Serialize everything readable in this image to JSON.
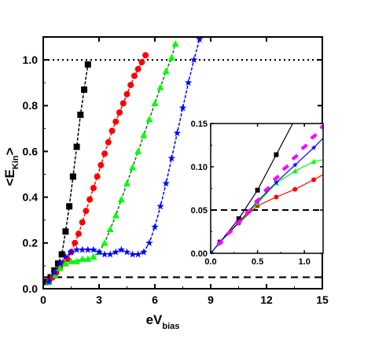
{
  "chart_data": [
    {
      "type": "scatter",
      "title": "",
      "ylabel": "<E",
      "ylabel_subscript": "Kin",
      "ylabel_end": ">",
      "xlabel": "eV",
      "xlabel_subscript": "bias",
      "xlim": [
        0,
        15
      ],
      "ylim": [
        0,
        1.1
      ],
      "xticks": [
        0,
        3,
        6,
        9,
        12,
        15
      ],
      "xtick_labels": [
        "0",
        "3",
        "6",
        "9",
        "12",
        "15"
      ],
      "yticks": [
        0.0,
        0.2,
        0.4,
        0.6,
        0.8,
        1.0
      ],
      "ytick_labels": [
        "0.0",
        "0.2",
        "0.4",
        "0.6",
        "0.8",
        "1.0"
      ],
      "grid": false,
      "legend": "none",
      "reference_lines": [
        {
          "y": 1.0,
          "style": "dotted",
          "color": "#000000"
        },
        {
          "y": 0.05,
          "style": "dashed",
          "color": "#000000"
        }
      ],
      "series": [
        {
          "marker": "square",
          "color": "#000000",
          "x": [
            0.2,
            0.4,
            0.6,
            0.8,
            1.0,
            1.2,
            1.4,
            1.6,
            1.8,
            2.0,
            2.2,
            2.4
          ],
          "y": [
            0.03,
            0.05,
            0.08,
            0.11,
            0.15,
            0.25,
            0.36,
            0.49,
            0.62,
            0.76,
            0.87,
            0.98
          ]
        },
        {
          "marker": "circle",
          "color": "#ff0000",
          "x": [
            0.3,
            0.5,
            0.7,
            0.9,
            1.1,
            1.3,
            1.5,
            1.7,
            1.9,
            2.1,
            2.3,
            2.5,
            2.7,
            2.9,
            3.1,
            3.3,
            3.5,
            3.7,
            3.9,
            4.1,
            4.3,
            4.5,
            4.7,
            4.9,
            5.1,
            5.3,
            5.5
          ],
          "y": [
            0.03,
            0.05,
            0.07,
            0.09,
            0.11,
            0.13,
            0.16,
            0.2,
            0.24,
            0.29,
            0.34,
            0.39,
            0.44,
            0.49,
            0.54,
            0.59,
            0.64,
            0.69,
            0.73,
            0.77,
            0.81,
            0.85,
            0.89,
            0.93,
            0.96,
            0.99,
            1.02
          ]
        },
        {
          "marker": "triangle",
          "color": "#00ff00",
          "x": [
            0.3,
            0.6,
            0.9,
            1.2,
            1.5,
            1.8,
            2.1,
            2.4,
            2.7,
            3.0,
            3.3,
            3.6,
            3.9,
            4.2,
            4.5,
            4.8,
            5.1,
            5.4,
            5.7,
            6.0,
            6.3,
            6.6,
            6.9,
            7.1
          ],
          "y": [
            0.03,
            0.06,
            0.09,
            0.11,
            0.12,
            0.12,
            0.13,
            0.13,
            0.14,
            0.16,
            0.2,
            0.26,
            0.32,
            0.39,
            0.46,
            0.53,
            0.6,
            0.67,
            0.74,
            0.81,
            0.88,
            0.95,
            1.01,
            1.07
          ]
        },
        {
          "marker": "star",
          "color": "#0000ff",
          "x": [
            0.3,
            0.6,
            0.9,
            1.2,
            1.5,
            1.8,
            2.1,
            2.4,
            2.7,
            3.0,
            3.3,
            3.6,
            3.9,
            4.2,
            4.5,
            4.8,
            5.1,
            5.4,
            5.7,
            6.0,
            6.3,
            6.6,
            6.9,
            7.2,
            7.5,
            7.8,
            8.1,
            8.4
          ],
          "y": [
            0.03,
            0.07,
            0.11,
            0.14,
            0.16,
            0.17,
            0.17,
            0.17,
            0.17,
            0.16,
            0.15,
            0.15,
            0.16,
            0.17,
            0.16,
            0.15,
            0.15,
            0.16,
            0.2,
            0.27,
            0.36,
            0.46,
            0.57,
            0.68,
            0.79,
            0.9,
            1.0,
            1.09
          ]
        }
      ]
    },
    {
      "type": "line",
      "title": "",
      "xlabel": "",
      "ylabel": "",
      "xlim": [
        0,
        1.2
      ],
      "ylim": [
        0,
        0.15
      ],
      "xticks": [
        0.0,
        0.5,
        1.0
      ],
      "xtick_labels": [
        "0.0",
        "0.5",
        "1.0"
      ],
      "yticks": [
        0.0,
        0.05,
        0.1,
        0.15
      ],
      "ytick_labels": [
        "0.00",
        "0.05",
        "0.10",
        "0.15"
      ],
      "grid": false,
      "legend": "none",
      "reference_lines": [
        {
          "y": 0.05,
          "style": "dashed",
          "color": "#000000"
        }
      ],
      "series": [
        {
          "marker": "square",
          "color": "#000000",
          "x": [
            0.0,
            0.1,
            0.3,
            0.5,
            0.7,
            0.9,
            1.2
          ],
          "y": [
            0.0,
            0.013,
            0.04,
            0.073,
            0.114,
            0.155,
            0.21
          ],
          "marker_x": [
            0.0,
            0.1,
            0.3,
            0.5,
            0.7
          ],
          "marker_y": [
            0.0,
            0.013,
            0.04,
            0.073,
            0.114
          ]
        },
        {
          "marker": "circle",
          "color": "#ff0000",
          "x": [
            0.0,
            0.1,
            0.3,
            0.5,
            0.7,
            0.9,
            1.1,
            1.2
          ],
          "y": [
            0.0,
            0.013,
            0.035,
            0.055,
            0.065,
            0.074,
            0.085,
            0.091
          ],
          "marker_x": [
            0.0,
            0.1,
            0.3,
            0.5,
            0.7,
            0.9,
            1.1
          ],
          "marker_y": [
            0.0,
            0.013,
            0.035,
            0.055,
            0.065,
            0.074,
            0.085
          ]
        },
        {
          "marker": "triangle",
          "color": "#00ff00",
          "x": [
            0.0,
            0.1,
            0.3,
            0.5,
            0.7,
            0.9,
            1.1,
            1.2
          ],
          "y": [
            0.0,
            0.013,
            0.036,
            0.058,
            0.081,
            0.095,
            0.106,
            0.108
          ],
          "marker_x": [
            0.0,
            0.1,
            0.3,
            0.5,
            0.7,
            0.9,
            1.1
          ],
          "marker_y": [
            0.0,
            0.013,
            0.036,
            0.058,
            0.081,
            0.095,
            0.106
          ]
        },
        {
          "marker": "star",
          "color": "#0000ff",
          "x": [
            0.0,
            0.1,
            0.3,
            0.5,
            0.7,
            0.9,
            1.1,
            1.2
          ],
          "y": [
            0.0,
            0.013,
            0.036,
            0.06,
            0.082,
            0.102,
            0.122,
            0.133
          ],
          "marker_x": [
            0.0,
            0.1,
            0.3,
            0.5,
            0.7,
            0.9,
            1.1
          ],
          "marker_y": [
            0.0,
            0.013,
            0.036,
            0.06,
            0.082,
            0.102,
            0.122
          ]
        },
        {
          "marker": "dash",
          "color": "#ff00ff",
          "x": [
            0.1,
            0.2,
            0.3,
            0.4,
            0.5,
            0.6,
            0.7,
            0.8,
            0.9,
            1.0,
            1.1,
            1.2
          ],
          "y": [
            0.012,
            0.024,
            0.036,
            0.048,
            0.061,
            0.074,
            0.087,
            0.099,
            0.111,
            0.123,
            0.135,
            0.147
          ],
          "marker_x": [
            0.1,
            0.2,
            0.3,
            0.4,
            0.5,
            0.6,
            0.7,
            0.8,
            0.9,
            1.0,
            1.1,
            1.2
          ],
          "marker_y": [
            0.012,
            0.024,
            0.036,
            0.048,
            0.061,
            0.074,
            0.087,
            0.099,
            0.111,
            0.123,
            0.135,
            0.147
          ]
        }
      ]
    }
  ]
}
